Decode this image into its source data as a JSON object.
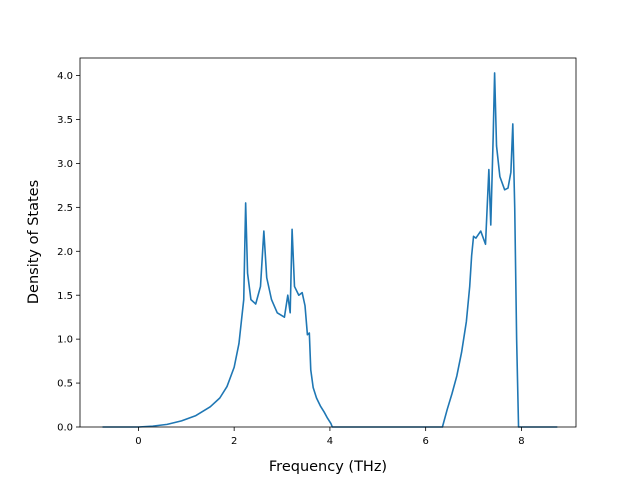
{
  "chart_data": {
    "type": "line",
    "title": "",
    "xlabel": "Frequency (THz)",
    "ylabel": "Density of States",
    "xlim": [
      -1.22,
      9.14
    ],
    "ylim": [
      0,
      4.2
    ],
    "x_ticks": [
      0,
      2,
      4,
      6,
      8
    ],
    "y_ticks": [
      0.0,
      0.5,
      1.0,
      1.5,
      2.0,
      2.5,
      3.0,
      3.5,
      4.0
    ],
    "x_tick_labels": [
      "0",
      "2",
      "4",
      "6",
      "8"
    ],
    "y_tick_labels": [
      "0.0",
      "0.5",
      "1.0",
      "1.5",
      "2.0",
      "2.5",
      "3.0",
      "3.5",
      "4.0"
    ],
    "grid": false,
    "legend": "none",
    "series": [
      {
        "color": "#1f77b4",
        "points": [
          [
            -0.75,
            0.0
          ],
          [
            0.0,
            0.0
          ],
          [
            0.3,
            0.01
          ],
          [
            0.6,
            0.03
          ],
          [
            0.9,
            0.07
          ],
          [
            1.2,
            0.13
          ],
          [
            1.5,
            0.23
          ],
          [
            1.7,
            0.33
          ],
          [
            1.85,
            0.46
          ],
          [
            2.0,
            0.68
          ],
          [
            2.1,
            0.95
          ],
          [
            2.15,
            1.2
          ],
          [
            2.2,
            1.45
          ],
          [
            2.24,
            2.55
          ],
          [
            2.28,
            1.75
          ],
          [
            2.35,
            1.45
          ],
          [
            2.45,
            1.4
          ],
          [
            2.55,
            1.6
          ],
          [
            2.62,
            2.23
          ],
          [
            2.68,
            1.7
          ],
          [
            2.78,
            1.45
          ],
          [
            2.9,
            1.3
          ],
          [
            3.05,
            1.25
          ],
          [
            3.12,
            1.5
          ],
          [
            3.17,
            1.3
          ],
          [
            3.21,
            2.25
          ],
          [
            3.26,
            1.6
          ],
          [
            3.35,
            1.5
          ],
          [
            3.42,
            1.53
          ],
          [
            3.48,
            1.38
          ],
          [
            3.53,
            1.05
          ],
          [
            3.57,
            1.07
          ],
          [
            3.6,
            0.65
          ],
          [
            3.65,
            0.45
          ],
          [
            3.72,
            0.33
          ],
          [
            3.8,
            0.24
          ],
          [
            3.88,
            0.17
          ],
          [
            3.95,
            0.1
          ],
          [
            4.02,
            0.04
          ],
          [
            4.05,
            0.0
          ],
          [
            6.35,
            0.0
          ],
          [
            6.45,
            0.2
          ],
          [
            6.55,
            0.38
          ],
          [
            6.65,
            0.58
          ],
          [
            6.75,
            0.85
          ],
          [
            6.85,
            1.2
          ],
          [
            6.92,
            1.6
          ],
          [
            6.96,
            1.95
          ],
          [
            7.0,
            2.17
          ],
          [
            7.05,
            2.15
          ],
          [
            7.15,
            2.23
          ],
          [
            7.25,
            2.08
          ],
          [
            7.32,
            2.93
          ],
          [
            7.36,
            2.3
          ],
          [
            7.41,
            3.3
          ],
          [
            7.44,
            4.03
          ],
          [
            7.48,
            3.2
          ],
          [
            7.55,
            2.85
          ],
          [
            7.65,
            2.7
          ],
          [
            7.72,
            2.72
          ],
          [
            7.78,
            2.9
          ],
          [
            7.82,
            3.45
          ],
          [
            7.86,
            2.5
          ],
          [
            7.9,
            1.0
          ],
          [
            7.94,
            0.0
          ],
          [
            8.75,
            0.0
          ]
        ]
      }
    ]
  }
}
